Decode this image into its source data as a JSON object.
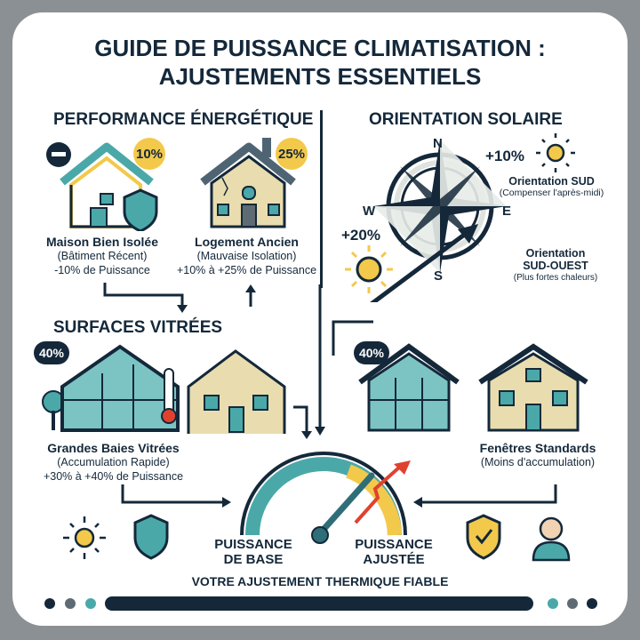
{
  "title": {
    "line1": "GUIDE DE PUISSANCE CLIMATISATION :",
    "line2": "AJUSTEMENTS ESSENTIELS"
  },
  "performance": {
    "heading": "PERFORMANCE ÉNERGÉTIQUE",
    "items": [
      {
        "badge": "10%",
        "name": "Maison Bien Isolée",
        "sub": "(Bâtiment Récent)",
        "effect": "-10% de Puissance"
      },
      {
        "badge": "25%",
        "name": "Logement Ancien",
        "sub": "(Mauvaise Isolation)",
        "effect": "+10% à +25% de Puissance"
      }
    ]
  },
  "orientation": {
    "heading": "ORIENTATION SOLAIRE",
    "compass": {
      "n": "N",
      "s": "S",
      "e": "E",
      "w": "W"
    },
    "sud": {
      "pct": "+10%",
      "name": "Orientation SUD",
      "sub": "(Compenser l'après-midi)"
    },
    "sudouest": {
      "pct": "+20%",
      "name1": "Orientation",
      "name2": "SUD-OUEST",
      "sub": "(Plus fortes chaleurs)"
    }
  },
  "vitrees": {
    "heading": "SURFACES VITRÉES",
    "left": {
      "badge": "40%",
      "name": "Grandes Baies Vitrées",
      "sub": "(Accumulation Rapide)",
      "effect": "+30% à +40% de Puissance"
    },
    "right": {
      "badge": "40%",
      "name": "Fenêtres Standards",
      "sub": "(Moins d'accumulation)"
    }
  },
  "gauge": {
    "base1": "PUISSANCE",
    "base2": "DE BASE",
    "adj1": "PUISSANCE",
    "adj2": "AJUSTÉE",
    "footer": "VOTRE AJUSTEMENT THERMIQUE FIABLE"
  },
  "colors": {
    "navy": "#14283a",
    "teal": "#4aa9a8",
    "yellow": "#f3c94b",
    "beige": "#e9dcae",
    "red": "#e0412f",
    "frame": "#8b9094"
  }
}
